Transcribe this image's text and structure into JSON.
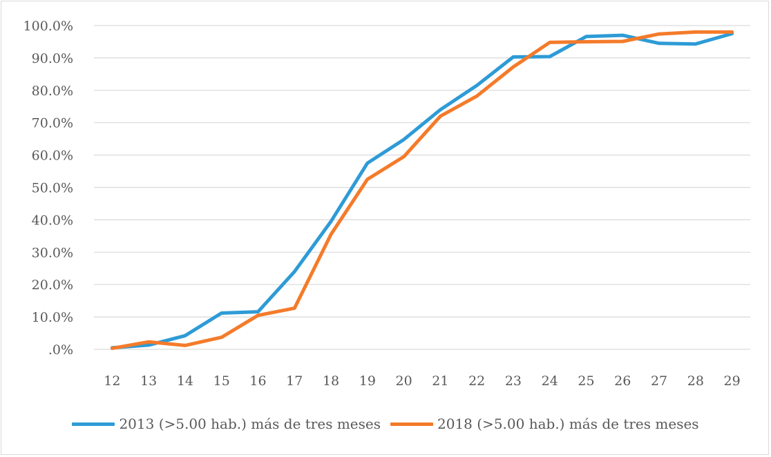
{
  "chart_data": {
    "type": "line",
    "x": [
      12,
      13,
      14,
      15,
      16,
      17,
      18,
      19,
      20,
      21,
      22,
      23,
      24,
      25,
      26,
      27,
      28,
      29
    ],
    "series": [
      {
        "name": "2013 (>5.00 hab.) más de tres meses",
        "color": "#2e9bd6",
        "values": [
          0.5,
          1.3,
          4.2,
          11.2,
          11.6,
          24.0,
          39.5,
          57.5,
          64.8,
          74.0,
          81.5,
          90.3,
          90.4,
          96.6,
          97.0,
          94.5,
          94.3,
          97.5
        ]
      },
      {
        "name": "2018 (>5.00 hab.) más de tres meses",
        "color": "#f47b2a",
        "values": [
          0.3,
          2.3,
          1.2,
          3.7,
          10.5,
          12.7,
          35.5,
          52.5,
          59.5,
          72.0,
          78.2,
          87.2,
          94.8,
          95.0,
          95.1,
          97.4,
          98.0,
          98.0
        ]
      }
    ],
    "y_ticks": [
      0,
      10,
      20,
      30,
      40,
      50,
      60,
      70,
      80,
      90,
      100
    ],
    "y_tick_labels": [
      ".0%",
      "10.0%",
      "20.0%",
      "30.0%",
      "40.0%",
      "50.0%",
      "60.0%",
      "70.0%",
      "80.0%",
      "90.0%",
      "100.0%"
    ],
    "ylim": [
      0,
      100
    ],
    "title": "",
    "xlabel": "",
    "ylabel": "",
    "grid": "horizontal",
    "legend_position": "bottom"
  }
}
